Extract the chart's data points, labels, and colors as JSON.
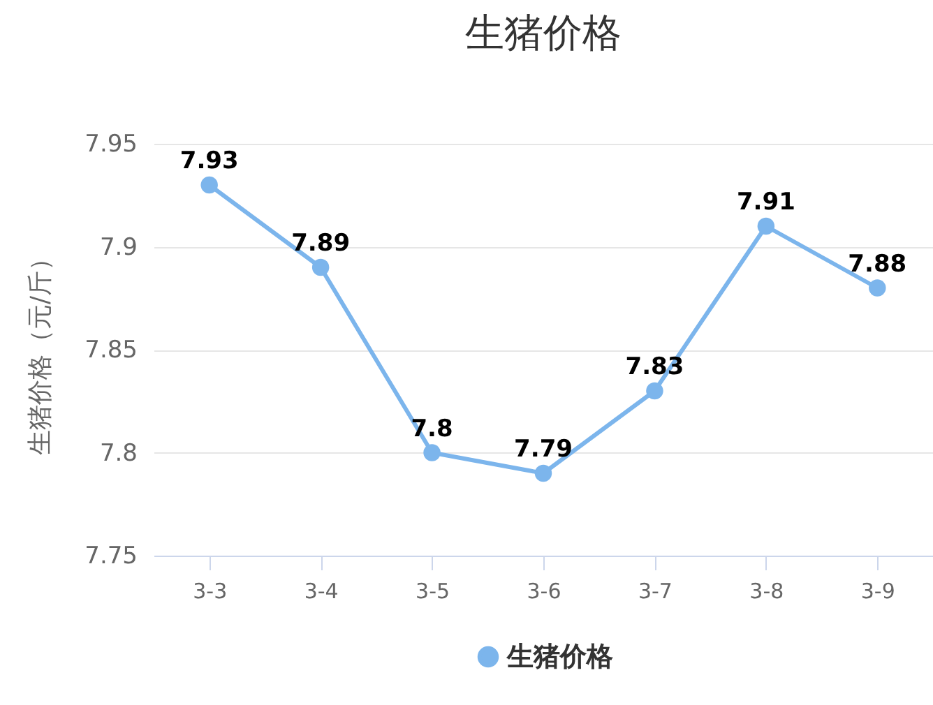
{
  "chart_data": {
    "type": "line",
    "title": "生猪价格",
    "ylabel": "生猪价格（元/斤）",
    "categories": [
      "3-3",
      "3-4",
      "3-5",
      "3-6",
      "3-7",
      "3-8",
      "3-9"
    ],
    "series": [
      {
        "name": "生猪价格",
        "color": "#7cb5ec",
        "values": [
          7.93,
          7.89,
          7.8,
          7.79,
          7.83,
          7.91,
          7.88
        ]
      }
    ],
    "ylim": [
      7.75,
      7.95
    ],
    "yticks": [
      7.75,
      7.8,
      7.85,
      7.9,
      7.95
    ],
    "grid": "y",
    "legend": "bottom",
    "marker": "circle",
    "line_style": "solid",
    "data_labels": true
  }
}
